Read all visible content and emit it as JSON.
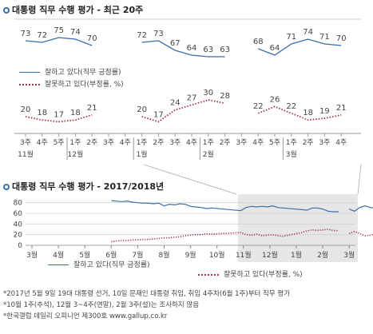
{
  "chart_data": [
    {
      "type": "line",
      "title": "대통령 직무 수행 평가 - 최근 20주",
      "x_top": [
        "3주",
        "4주",
        "5주",
        "1주",
        "2주",
        "3주",
        "4주",
        "1주",
        "2주",
        "3주",
        "4주",
        "1주",
        "2주",
        "3주",
        "4주",
        "5주",
        "1주",
        "2주",
        "3주",
        "4주"
      ],
      "x_bottom": [
        {
          "index": 0,
          "label": "11월"
        },
        {
          "index": 3,
          "label": "12월"
        },
        {
          "index": 7,
          "label": "1월"
        },
        {
          "index": 11,
          "label": "2월"
        },
        {
          "index": 16,
          "label": "3월"
        }
      ],
      "series": [
        {
          "name": "잘하고 있다(직무 긍정률)",
          "color": "#3b6ea8",
          "style": "solid",
          "values": [
            73,
            72,
            75,
            74,
            70,
            null,
            null,
            72,
            73,
            67,
            64,
            63,
            63,
            null,
            68,
            64,
            71,
            74,
            71,
            70
          ]
        },
        {
          "name": "잘못하고 있다(부정률, %)",
          "color": "#a83240",
          "style": "dotted",
          "values": [
            20,
            18,
            17,
            18,
            21,
            null,
            null,
            20,
            17,
            24,
            27,
            30,
            28,
            null,
            22,
            26,
            22,
            18,
            19,
            21
          ]
        }
      ]
    },
    {
      "type": "line",
      "title": "대통령 직무 수행 평가 - 2017/2018년",
      "y_ticks": [
        80,
        60,
        40,
        20,
        0
      ],
      "ylim": [
        0,
        90
      ],
      "months": [
        "3월",
        "4월",
        "5월",
        "6월",
        "7월",
        "8월",
        "9월",
        "10월",
        "11월",
        "12월",
        "1월",
        "2월",
        "3월"
      ],
      "series": [
        {
          "name": "잘하고 있다(직무 긍정률)",
          "color": "#3b6ea8",
          "style": "solid",
          "x": [
            6.0,
            6.2,
            6.4,
            6.6,
            6.8,
            7.0,
            7.2,
            7.4,
            7.6,
            7.8,
            8.0,
            8.2,
            8.4,
            8.6,
            8.8,
            9.0,
            9.2,
            9.4,
            9.6,
            9.8,
            10.9,
            11.1,
            11.3,
            11.5,
            11.7,
            11.9,
            12.1,
            12.3,
            12.5,
            13.2,
            13.4,
            13.6,
            13.8,
            14.0,
            14.2,
            14.4,
            14.6,
            14.8,
            15.0,
            15.2,
            15.4,
            15.6,
            15.8,
            16.0,
            16.2
          ],
          "y": [
            84,
            83,
            82,
            83,
            81,
            80,
            79,
            79,
            78,
            79,
            74,
            77,
            76,
            78,
            77,
            73,
            72,
            71,
            69,
            70,
            65,
            71,
            73,
            72,
            73,
            72,
            74,
            71,
            70,
            67,
            66,
            70,
            70,
            68,
            64,
            63,
            63,
            null,
            68,
            64,
            71,
            74,
            71,
            70,
            69
          ]
        },
        {
          "name": "잘못하고 있다(부정률, %)",
          "color": "#a83240",
          "style": "dotted",
          "x": [
            6.0,
            6.2,
            6.4,
            6.6,
            6.8,
            7.0,
            7.2,
            7.4,
            7.6,
            7.8,
            8.0,
            8.2,
            8.4,
            8.6,
            8.8,
            9.0,
            9.2,
            9.4,
            9.6,
            9.8,
            10.9,
            11.1,
            11.3,
            11.5,
            11.7,
            11.9,
            12.1,
            12.3,
            12.5,
            13.2,
            13.4,
            13.6,
            13.8,
            14.0,
            14.2,
            14.4,
            14.6,
            14.8,
            15.0,
            15.2,
            15.4,
            15.6,
            15.8,
            16.0,
            16.2
          ],
          "y": [
            7,
            8,
            9,
            9,
            10,
            10,
            11,
            11,
            12,
            13,
            14,
            14,
            15,
            16,
            18,
            19,
            20,
            20,
            22,
            21,
            24,
            20,
            19,
            21,
            18,
            19,
            20,
            18,
            17,
            24,
            27,
            29,
            28,
            29,
            30,
            28,
            27,
            null,
            22,
            26,
            22,
            18,
            19,
            21,
            20
          ]
        }
      ],
      "shaded_range_label": ""
    }
  ],
  "legend": {
    "positive": "잘하고 있다(직무 긍정률)",
    "negative": "잘못하고 있다(부정률, %)"
  },
  "notes": [
    "*2017년 5월 9일 19대 대통령 선거, 10일 문재인 대통령 취임, 취임 4주차(6월 1주)부터 직무 평가",
    "*10월 1주(추석), 12월 3~4주(연말), 2월 3주(설)는 조사하지 않음",
    "*한국갤럽 데일리 오피니언 제300호 www.gallup.co.kr"
  ]
}
